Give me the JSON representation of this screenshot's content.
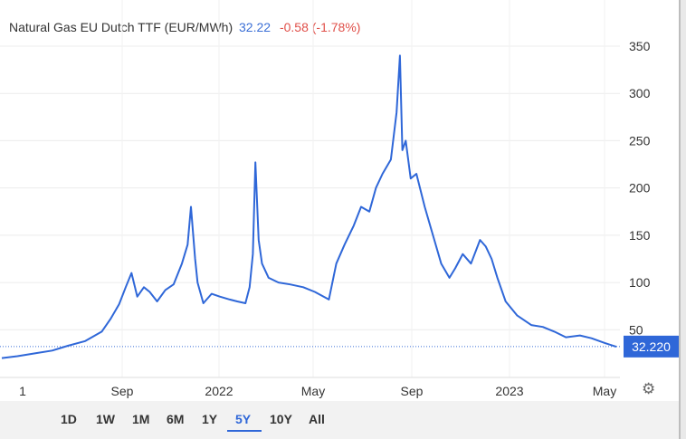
{
  "header": {
    "title": "Natural Gas EU Dutch TTF (EUR/MWh)",
    "price": "32.22",
    "change": "-0.58 (-1.78%)"
  },
  "current_label": "32.220",
  "periods": [
    "1D",
    "1W",
    "1M",
    "6M",
    "1Y",
    "5Y",
    "10Y",
    "All"
  ],
  "active_period": "5Y",
  "settings_icon": "gear-icon",
  "colors": {
    "line": "#2f67d8",
    "price": "#3b6fd6",
    "change": "#e0504a",
    "tag_bg": "#2f67d8"
  },
  "chart_data": {
    "type": "line",
    "title": "Natural Gas EU Dutch TTF (EUR/MWh)",
    "xlabel": "",
    "ylabel": "",
    "x_tick_labels": [
      "1",
      "Sep",
      "2022",
      "May",
      "Sep",
      "2023",
      "May"
    ],
    "y_tick_labels": [
      "50",
      "100",
      "150",
      "200",
      "250",
      "300",
      "350"
    ],
    "ylim": [
      0,
      385
    ],
    "current_value": 32.22,
    "grid": true,
    "series": [
      {
        "x": [
          "2021-05-01",
          "2021-05-20",
          "2021-06-10",
          "2021-07-01",
          "2021-07-20",
          "2021-08-10",
          "2021-08-30",
          "2021-09-10",
          "2021-09-20",
          "2021-09-28",
          "2021-10-05",
          "2021-10-12",
          "2021-10-20",
          "2021-10-27",
          "2021-11-05",
          "2021-11-15",
          "2021-11-25",
          "2021-12-05",
          "2021-12-12",
          "2021-12-16",
          "2021-12-21",
          "2021-12-24",
          "2021-12-31",
          "2022-01-10",
          "2022-01-20",
          "2022-02-01",
          "2022-02-10",
          "2022-02-20",
          "2022-02-25",
          "2022-03-01",
          "2022-03-04",
          "2022-03-08",
          "2022-03-12",
          "2022-03-20",
          "2022-04-01",
          "2022-04-15",
          "2022-05-01",
          "2022-05-15",
          "2022-06-01",
          "2022-06-10",
          "2022-06-20",
          "2022-07-01",
          "2022-07-10",
          "2022-07-20",
          "2022-07-28",
          "2022-08-05",
          "2022-08-15",
          "2022-08-22",
          "2022-08-26",
          "2022-08-29",
          "2022-09-02",
          "2022-09-08",
          "2022-09-15",
          "2022-09-25",
          "2022-10-05",
          "2022-10-15",
          "2022-10-25",
          "2022-11-01",
          "2022-11-10",
          "2022-11-20",
          "2022-12-01",
          "2022-12-08",
          "2022-12-15",
          "2022-12-22",
          "2023-01-01",
          "2023-01-15",
          "2023-02-01",
          "2023-02-15",
          "2023-03-01",
          "2023-03-15",
          "2023-04-01",
          "2023-04-15",
          "2023-05-01",
          "2023-05-15"
        ],
        "values": [
          20,
          22,
          25,
          28,
          33,
          38,
          48,
          62,
          77,
          95,
          110,
          85,
          95,
          90,
          80,
          92,
          98,
          120,
          140,
          180,
          125,
          100,
          78,
          88,
          85,
          82,
          80,
          78,
          95,
          130,
          227,
          145,
          120,
          105,
          100,
          98,
          95,
          90,
          82,
          120,
          140,
          160,
          180,
          175,
          200,
          215,
          230,
          280,
          340,
          240,
          250,
          210,
          215,
          180,
          150,
          120,
          105,
          115,
          130,
          120,
          145,
          138,
          125,
          105,
          80,
          65,
          55,
          53,
          48,
          42,
          44,
          41,
          36,
          32
        ]
      }
    ]
  }
}
